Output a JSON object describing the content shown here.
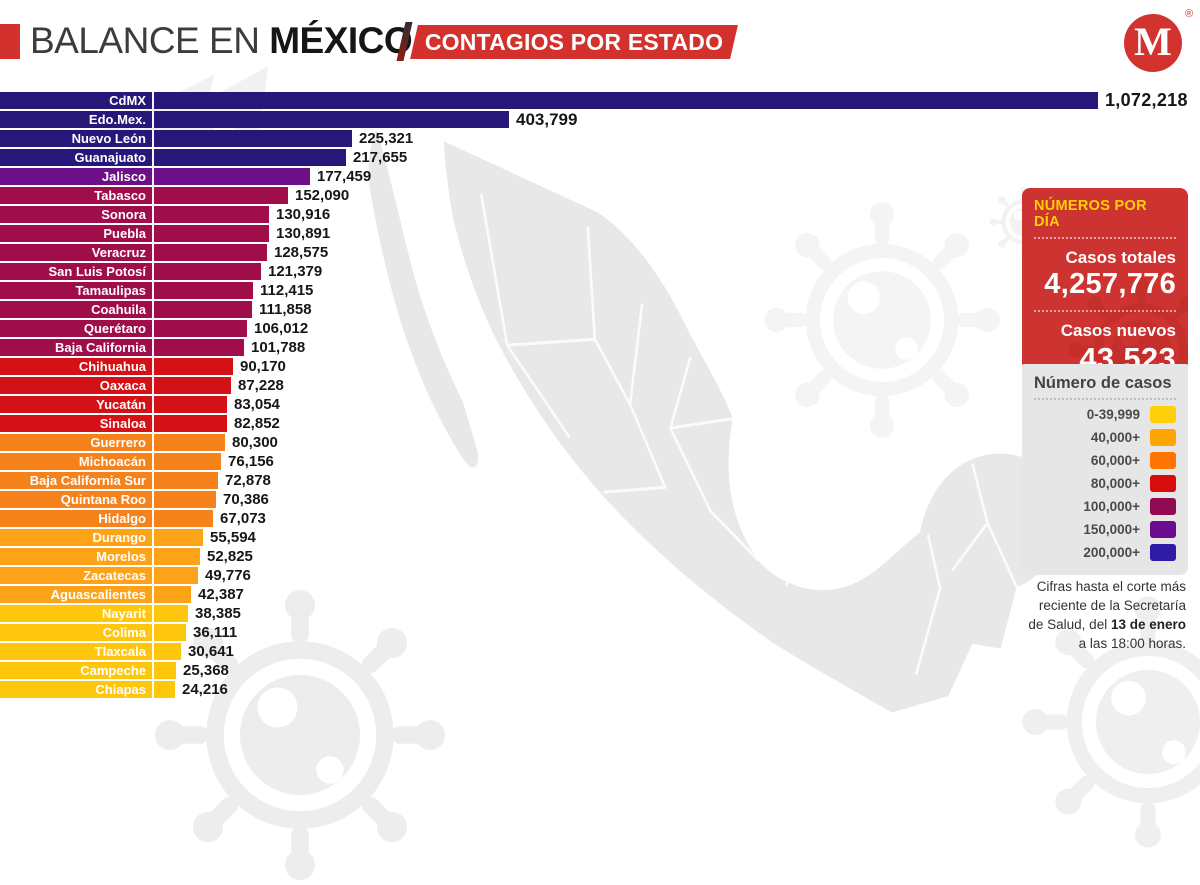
{
  "header": {
    "title_prefix": "BALANCE EN ",
    "title_emphasis": "MÉXICO",
    "banner_label": "CONTAGIOS POR ESTADO",
    "brand_letter": "M",
    "brand_trademark": "®",
    "accent_color": "#d2312d",
    "banner_color": "#d2312d",
    "logo_color": "#d2332f"
  },
  "chart_data": {
    "type": "bar",
    "orientation": "horizontal",
    "title": "Contagios por estado",
    "value_unit": "casos confirmados",
    "xlim": [
      0,
      1100000
    ],
    "grid": false,
    "states": [
      {
        "name": "CdMX",
        "value": 1072218,
        "display": "1,072,218",
        "color": "#261778"
      },
      {
        "name": "Edo.Mex.",
        "value": 403799,
        "display": "403,799",
        "color": "#261778"
      },
      {
        "name": "Nuevo León",
        "value": 225321,
        "display": "225,321",
        "color": "#261778"
      },
      {
        "name": "Guanajuato",
        "value": 217655,
        "display": "217,655",
        "color": "#261778"
      },
      {
        "name": "Jalisco",
        "value": 177459,
        "display": "177,459",
        "color": "#6d0f87"
      },
      {
        "name": "Tabasco",
        "value": 152090,
        "display": "152,090",
        "color": "#a00d4b"
      },
      {
        "name": "Sonora",
        "value": 130916,
        "display": "130,916",
        "color": "#a00d4b"
      },
      {
        "name": "Puebla",
        "value": 130891,
        "display": "130,891",
        "color": "#a00d4b"
      },
      {
        "name": "Veracruz",
        "value": 128575,
        "display": "128,575",
        "color": "#a00d4b"
      },
      {
        "name": "San Luis Potosí",
        "value": 121379,
        "display": "121,379",
        "color": "#a00d4b"
      },
      {
        "name": "Tamaulipas",
        "value": 112415,
        "display": "112,415",
        "color": "#a00d4b"
      },
      {
        "name": "Coahuila",
        "value": 111858,
        "display": "111,858",
        "color": "#a00d4b"
      },
      {
        "name": "Querétaro",
        "value": 106012,
        "display": "106,012",
        "color": "#a00d4b"
      },
      {
        "name": "Baja California",
        "value": 101788,
        "display": "101,788",
        "color": "#a00d4b"
      },
      {
        "name": "Chihuahua",
        "value": 90170,
        "display": "90,170",
        "color": "#d41116"
      },
      {
        "name": "Oaxaca",
        "value": 87228,
        "display": "87,228",
        "color": "#d41116"
      },
      {
        "name": "Yucatán",
        "value": 83054,
        "display": "83,054",
        "color": "#d41116"
      },
      {
        "name": "Sinaloa",
        "value": 82852,
        "display": "82,852",
        "color": "#d41116"
      },
      {
        "name": "Guerrero",
        "value": 80300,
        "display": "80,300",
        "color": "#f6821c"
      },
      {
        "name": "Michoacán",
        "value": 76156,
        "display": "76,156",
        "color": "#f6821c"
      },
      {
        "name": "Baja California Sur",
        "value": 72878,
        "display": "72,878",
        "color": "#f6821c"
      },
      {
        "name": "Quintana Roo",
        "value": 70386,
        "display": "70,386",
        "color": "#f6821c"
      },
      {
        "name": "Hidalgo",
        "value": 67073,
        "display": "67,073",
        "color": "#f6821c"
      },
      {
        "name": "Durango",
        "value": 55594,
        "display": "55,594",
        "color": "#fca318"
      },
      {
        "name": "Morelos",
        "value": 52825,
        "display": "52,825",
        "color": "#fca318"
      },
      {
        "name": "Zacatecas",
        "value": 49776,
        "display": "49,776",
        "color": "#fca318"
      },
      {
        "name": "Aguascalientes",
        "value": 42387,
        "display": "42,387",
        "color": "#fca318"
      },
      {
        "name": "Nayarit",
        "value": 38385,
        "display": "38,385",
        "color": "#ffc60e"
      },
      {
        "name": "Colima",
        "value": 36111,
        "display": "36,111",
        "color": "#ffc60e"
      },
      {
        "name": "Tlaxcala",
        "value": 30641,
        "display": "30,641",
        "color": "#ffc60e"
      },
      {
        "name": "Campeche",
        "value": 25368,
        "display": "25,368",
        "color": "#ffc60e"
      },
      {
        "name": "Chiapas",
        "value": 24216,
        "display": "24,216",
        "color": "#ffc60e"
      }
    ]
  },
  "daily_panel": {
    "title": "NÚMEROS POR DÍA",
    "total_cases_label": "Casos totales",
    "total_cases_value": "4,257,776",
    "new_cases_label": "Casos nuevos",
    "new_cases_value": "43,523",
    "bg_color": "#cd3431",
    "title_color": "#ffd100"
  },
  "legend": {
    "title": "Número de casos",
    "items": [
      {
        "label": "0-39,999",
        "color": "#ffd008"
      },
      {
        "label": "40,000+",
        "color": "#ffa405"
      },
      {
        "label": "60,000+",
        "color": "#ff7500"
      },
      {
        "label": "80,000+",
        "color": "#d60d0d"
      },
      {
        "label": "100,000+",
        "color": "#8f0a50"
      },
      {
        "label": "150,000+",
        "color": "#6c0b8e"
      },
      {
        "label": "200,000+",
        "color": "#2f1ca6"
      }
    ]
  },
  "footnote": {
    "text_before": "Cifras hasta el corte más reciente de la Secretaría de Salud, del ",
    "highlight": "13 de enero",
    "text_after": " a las 18:00 horas."
  }
}
